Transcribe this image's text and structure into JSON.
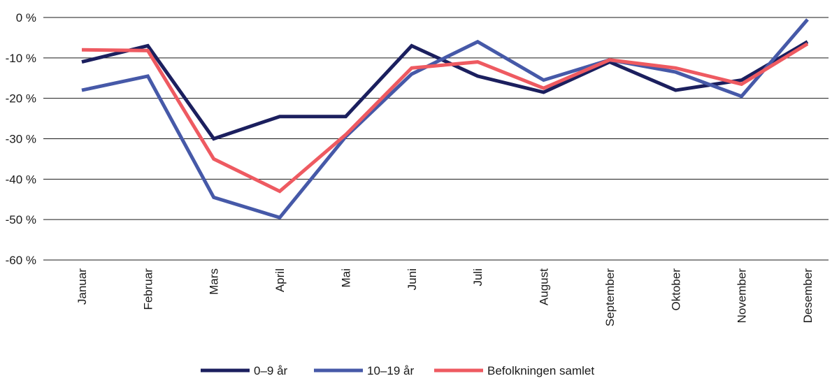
{
  "chart_data": {
    "type": "line",
    "title": "",
    "xlabel": "",
    "ylabel": "",
    "categories": [
      "Januar",
      "Februar",
      "Mars",
      "April",
      "Mai",
      "Juni",
      "Juli",
      "August",
      "September",
      "Oktober",
      "November",
      "Desember"
    ],
    "ylim": [
      -60,
      0
    ],
    "yticks": [
      0,
      -10,
      -20,
      -30,
      -40,
      -50,
      -60
    ],
    "ytick_labels": [
      "0 %",
      "-10 %",
      "-20 %",
      "-30 %",
      "-40 %",
      "-50 %",
      "-60 %"
    ],
    "grid": true,
    "legend_position": "bottom",
    "series": [
      {
        "name": "0–9 år",
        "color": "#1b1f5e",
        "values": [
          -11,
          -7,
          -30,
          -24.5,
          -24.5,
          -7,
          -14.5,
          -18.5,
          -11,
          -18,
          -15.5,
          -6
        ]
      },
      {
        "name": "10–19 år",
        "color": "#4659a8",
        "values": [
          -18,
          -14.5,
          -44.5,
          -49.5,
          -29.5,
          -14,
          -6,
          -15.5,
          -10.5,
          -13.5,
          -19.5,
          -0.5
        ]
      },
      {
        "name": "Befolkningen samlet",
        "color": "#ee5a61",
        "values": [
          -8,
          -8.2,
          -35,
          -43,
          -29,
          -12.5,
          -11,
          -17.5,
          -10.5,
          -12.5,
          -16.5,
          -6.5
        ]
      }
    ]
  }
}
